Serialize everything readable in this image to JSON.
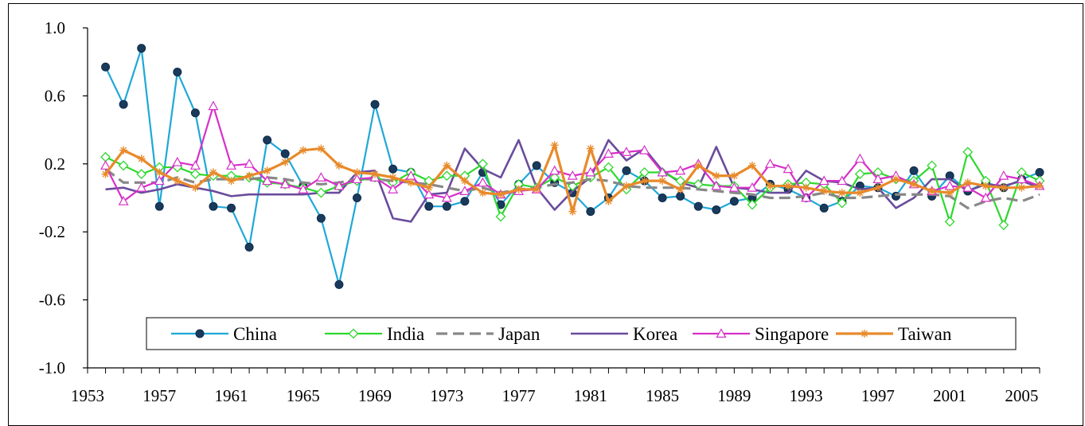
{
  "chart_data": {
    "type": "line",
    "x": [
      1954,
      1955,
      1956,
      1957,
      1958,
      1959,
      1960,
      1961,
      1962,
      1963,
      1964,
      1965,
      1966,
      1967,
      1968,
      1969,
      1970,
      1971,
      1972,
      1973,
      1974,
      1975,
      1976,
      1977,
      1978,
      1979,
      1980,
      1981,
      1982,
      1983,
      1984,
      1985,
      1986,
      1987,
      1988,
      1989,
      1990,
      1991,
      1992,
      1993,
      1994,
      1995,
      1996,
      1997,
      1998,
      1999,
      2000,
      2001,
      2002,
      2003,
      2004,
      2005,
      2006
    ],
    "x_ticks": [
      "1953",
      "1957",
      "1961",
      "1965",
      "1969",
      "1973",
      "1977",
      "1981",
      "1985",
      "1989",
      "1993",
      "1997",
      "2001",
      "2005"
    ],
    "x_tick_values": [
      1953,
      1957,
      1961,
      1965,
      1969,
      1973,
      1977,
      1981,
      1985,
      1989,
      1993,
      1997,
      2001,
      2005
    ],
    "xlim": [
      1953,
      2006
    ],
    "y_ticks": [
      "1.0",
      "0.6",
      "0.2",
      "-0.2",
      "-0.6",
      "-1.0"
    ],
    "y_tick_values": [
      1.0,
      0.6,
      0.2,
      -0.2,
      -0.6,
      -1.0
    ],
    "ylim": [
      -1.0,
      1.0
    ],
    "grid": false,
    "legend_position": "bottom-center",
    "series": [
      {
        "name": "China",
        "color": "#1fa8d8",
        "marker": "circle",
        "dash": "none",
        "values": [
          0.77,
          0.55,
          0.88,
          -0.05,
          0.74,
          0.5,
          -0.05,
          -0.06,
          -0.29,
          0.34,
          0.26,
          0.07,
          -0.12,
          -0.51,
          0.0,
          0.55,
          0.17,
          0.15,
          -0.05,
          -0.05,
          -0.02,
          0.15,
          -0.04,
          0.08,
          0.19,
          0.09,
          0.03,
          -0.08,
          0.0,
          0.16,
          0.1,
          0.0,
          0.01,
          -0.05,
          -0.07,
          -0.02,
          0.0,
          0.08,
          0.05,
          0.0,
          -0.06,
          -0.02,
          0.07,
          0.06,
          0.01,
          0.16,
          0.01,
          0.13,
          0.04,
          0.09,
          0.06,
          0.11,
          0.15
        ]
      },
      {
        "name": "India",
        "color": "#2ed82e",
        "marker": "diamond",
        "dash": "none",
        "values": [
          0.24,
          0.19,
          0.14,
          0.18,
          0.18,
          0.14,
          0.13,
          0.13,
          0.12,
          0.09,
          0.08,
          0.06,
          0.03,
          0.07,
          0.1,
          0.12,
          0.09,
          0.15,
          0.1,
          0.13,
          0.13,
          0.2,
          -0.11,
          0.08,
          0.06,
          0.12,
          0.07,
          0.12,
          0.18,
          0.05,
          0.15,
          0.15,
          0.1,
          0.08,
          0.07,
          0.07,
          -0.04,
          0.06,
          0.08,
          0.09,
          0.08,
          -0.03,
          0.14,
          0.15,
          0.11,
          0.1,
          0.19,
          -0.14,
          0.27,
          0.1,
          -0.16,
          0.15,
          0.1
        ]
      },
      {
        "name": "Japan",
        "color": "#888888",
        "marker": "none",
        "dash": "dash",
        "values": [
          0.17,
          0.09,
          0.09,
          0.09,
          0.12,
          0.09,
          0.11,
          0.11,
          0.11,
          0.12,
          0.11,
          0.09,
          0.08,
          0.09,
          0.11,
          0.11,
          0.1,
          0.09,
          0.08,
          0.06,
          0.04,
          0.06,
          0.03,
          0.05,
          0.06,
          0.08,
          0.09,
          0.11,
          0.1,
          0.07,
          0.06,
          0.06,
          0.06,
          0.05,
          0.04,
          0.03,
          0.02,
          0.0,
          0.0,
          0.01,
          0.03,
          0.0,
          0.0,
          0.01,
          0.02,
          0.02,
          0.02,
          0.01,
          -0.06,
          -0.02,
          0.0,
          -0.02,
          0.02
        ]
      },
      {
        "name": "Korea",
        "color": "#6a4c9c",
        "marker": "none",
        "dash": "none",
        "values": [
          0.05,
          0.06,
          0.03,
          0.05,
          0.08,
          0.06,
          0.04,
          0.01,
          0.02,
          0.02,
          0.02,
          0.02,
          0.03,
          0.03,
          0.15,
          0.16,
          -0.12,
          -0.14,
          0.02,
          0.03,
          0.29,
          0.17,
          0.12,
          0.34,
          0.06,
          -0.07,
          0.04,
          0.12,
          0.34,
          0.22,
          0.29,
          0.16,
          0.09,
          0.06,
          0.3,
          0.06,
          0.05,
          0.03,
          0.03,
          0.16,
          0.1,
          0.09,
          0.05,
          0.06,
          -0.06,
          0.0,
          0.11,
          0.11,
          0.04,
          0.08,
          0.07,
          0.1,
          0.06
        ]
      },
      {
        "name": "Singapore",
        "color": "#d630c9",
        "marker": "triangle",
        "dash": "none",
        "values": [
          0.19,
          -0.02,
          0.06,
          0.1,
          0.21,
          0.19,
          0.54,
          0.19,
          0.2,
          0.1,
          0.08,
          0.05,
          0.12,
          0.07,
          0.11,
          0.12,
          0.05,
          0.13,
          0.02,
          0.0,
          0.04,
          0.09,
          0.02,
          0.04,
          0.05,
          0.16,
          0.13,
          0.15,
          0.26,
          0.27,
          0.28,
          0.15,
          0.16,
          0.2,
          0.07,
          0.06,
          0.06,
          0.2,
          0.17,
          0.0,
          0.1,
          0.1,
          0.23,
          0.11,
          0.13,
          0.08,
          0.04,
          0.07,
          0.06,
          0.0,
          0.13,
          0.11,
          0.07
        ]
      },
      {
        "name": "Taiwan",
        "color": "#e88a2a",
        "marker": "star",
        "dash": "none",
        "values": [
          0.14,
          0.28,
          0.23,
          0.15,
          0.1,
          0.06,
          0.15,
          0.1,
          0.13,
          0.16,
          0.21,
          0.28,
          0.29,
          0.19,
          0.15,
          0.14,
          0.12,
          0.09,
          0.06,
          0.19,
          0.1,
          0.03,
          0.02,
          0.05,
          0.05,
          0.31,
          -0.08,
          0.29,
          -0.02,
          0.07,
          0.1,
          0.1,
          0.05,
          0.19,
          0.13,
          0.13,
          0.19,
          0.07,
          0.07,
          0.06,
          0.04,
          0.03,
          0.03,
          0.06,
          0.11,
          0.08,
          0.04,
          0.03,
          0.09,
          0.07,
          0.06,
          0.06,
          0.07
        ]
      }
    ]
  }
}
